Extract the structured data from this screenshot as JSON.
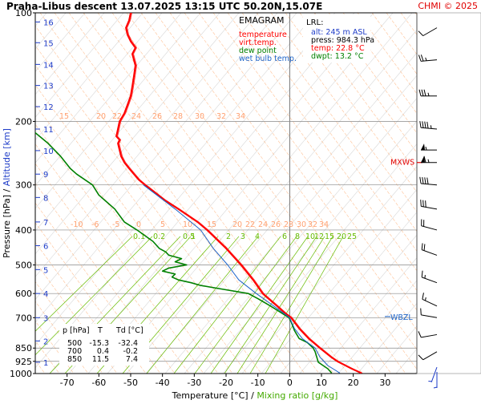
{
  "chart_data": {
    "type": "line",
    "title": "Praha-Libus   descent   13.07.2025 13:15 UTC  50.20N,15.07E",
    "copyright": "CHMI © 2025",
    "xlabel": "Temperature [°C]",
    "xlabel_sep": "/",
    "xlabel2": "Mixing ratio [g/kg]",
    "ylabel": "Pressure [hPa]",
    "ylabel_sep": "/",
    "ylabel2": "Altitude [km]",
    "x_range": [
      -80,
      40
    ],
    "y_range_hPa": [
      1000,
      100
    ],
    "y_scale": "log",
    "x_ticks": [
      -70,
      -60,
      -50,
      -40,
      -30,
      -20,
      -10,
      0,
      10,
      20,
      30
    ],
    "pressure_ticks": [
      100,
      200,
      300,
      400,
      500,
      600,
      700,
      850,
      925,
      1000
    ],
    "altitude_ticks": [
      {
        "km": "16",
        "p": 106
      },
      {
        "km": "15",
        "p": 121
      },
      {
        "km": "14",
        "p": 139
      },
      {
        "km": "13",
        "p": 159
      },
      {
        "km": "12",
        "p": 182
      },
      {
        "km": "11",
        "p": 210
      },
      {
        "km": "10",
        "p": 241
      },
      {
        "km": "9",
        "p": 280
      },
      {
        "km": "8",
        "p": 325
      },
      {
        "km": "7",
        "p": 380
      },
      {
        "km": "6",
        "p": 442
      },
      {
        "km": "5",
        "p": 515
      },
      {
        "km": "4",
        "p": 600
      },
      {
        "km": "3",
        "p": 700
      },
      {
        "km": "2",
        "p": 812
      },
      {
        "km": "1",
        "p": 930
      }
    ],
    "mixing_ratio_labels": [
      "0.1",
      "0.2",
      "0.5",
      "1",
      "2",
      "3",
      "4",
      "6",
      "8",
      "10",
      "12",
      "15",
      "20",
      "25"
    ],
    "adiabat_labels_200": [
      "15",
      "20",
      "22",
      "24",
      "26",
      "28",
      "30",
      "32",
      "34"
    ],
    "adiabat_labels_400": [
      "-10",
      "-6",
      "-5",
      "0",
      "5",
      "10",
      "15",
      "20",
      "22",
      "24",
      "26",
      "28",
      "30",
      "32",
      "34"
    ],
    "legend": {
      "title": "EMAGRAM",
      "items": [
        {
          "label": "temperature",
          "color": "#ff0000"
        },
        {
          "label": "virt.temp.",
          "color": "#ff0000"
        },
        {
          "label": "dew point",
          "color": "#008000"
        },
        {
          "label": "wet bulb temp.",
          "color": "#1e64c8"
        }
      ]
    },
    "lrl": {
      "title": "LRL:",
      "alt": "alt: 245 m ASL",
      "press": "press: 984.3 hPa",
      "temp": "temp: 22.8 °C",
      "dwpt": "dwpt: 13.2 °C"
    },
    "markers": {
      "mxws": "MXWS",
      "wbzl": "WBZL",
      "wbzl_p": 695,
      "mxws_p": 260
    },
    "table": {
      "headers": [
        "p [hPa]",
        "T",
        "Td [°C]"
      ],
      "rows": [
        [
          "500",
          "-15.3",
          "-32.4"
        ],
        [
          "700",
          "0.4",
          "-0.2"
        ],
        [
          "850",
          "11.5",
          "7.4"
        ]
      ]
    },
    "series": [
      {
        "name": "temperature",
        "color": "#ff0000",
        "p": [
          997,
          970,
          940,
          925,
          900,
          850,
          800,
          750,
          700,
          680,
          650,
          600,
          550,
          500,
          450,
          400,
          380,
          350,
          330,
          300,
          290,
          280,
          270,
          260,
          250,
          240,
          230,
          225,
          220,
          210,
          200,
          190,
          180,
          170,
          160,
          150,
          140,
          130,
          125,
          120,
          115,
          110,
          105,
          100
        ],
        "t": [
          22.5,
          19.5,
          16.5,
          15.0,
          13.0,
          9.5,
          6.0,
          3.0,
          0.4,
          -1.5,
          -4.0,
          -8.5,
          -11.5,
          -15.3,
          -20.0,
          -26.0,
          -29.0,
          -35.0,
          -39.5,
          -45.5,
          -47.5,
          -49.0,
          -50.5,
          -52.0,
          -53.0,
          -53.5,
          -54.0,
          -53.5,
          -54.5,
          -54.0,
          -53.5,
          -52.0,
          -51.0,
          -50.0,
          -49.5,
          -49.0,
          -48.5,
          -49.5,
          -48.5,
          -50.0,
          -51.0,
          -51.5,
          -50.5,
          -50.0
        ]
      },
      {
        "name": "dew point",
        "color": "#008000",
        "p": [
          997,
          970,
          950,
          930,
          900,
          870,
          850,
          820,
          800,
          760,
          720,
          700,
          680,
          650,
          620,
          600,
          580,
          570,
          560,
          550,
          540,
          530,
          520,
          510,
          500,
          490,
          480,
          470,
          460,
          450,
          430,
          400,
          380,
          350,
          320,
          300,
          280,
          270,
          250,
          230,
          215,
          200,
          190
        ],
        "t": [
          13.2,
          12.0,
          10.5,
          9.0,
          8.5,
          8.0,
          7.4,
          5.5,
          3.0,
          1.5,
          0.5,
          -0.2,
          -2.5,
          -6.0,
          -10.0,
          -13.0,
          -23.0,
          -28.0,
          -31.0,
          -35.0,
          -37.0,
          -36.0,
          -40.0,
          -38.0,
          -32.4,
          -36.0,
          -34.0,
          -38.0,
          -39.0,
          -41.0,
          -43.0,
          -48.0,
          -52.0,
          -55.0,
          -60.0,
          -62.0,
          -67.0,
          -69.0,
          -72.0,
          -76.0,
          -80.0,
          -83.0,
          -85.0
        ]
      },
      {
        "name": "wet bulb temp.",
        "color": "#1e64c8",
        "p": [
          997,
          950,
          900,
          850,
          800,
          750,
          700,
          650,
          600,
          550,
          500,
          450,
          400,
          350,
          300
        ],
        "t": [
          15.8,
          12.0,
          9.5,
          8.0,
          4.0,
          1.5,
          0.0,
          -5.0,
          -10.5,
          -16.0,
          -19.5,
          -24.0,
          -28.0,
          -36.0,
          -46.0
        ]
      }
    ],
    "winds": [
      {
        "p": 110,
        "dir": 240,
        "spd": 10
      },
      {
        "p": 135,
        "dir": 265,
        "spd": 25
      },
      {
        "p": 170,
        "dir": 270,
        "spd": 35
      },
      {
        "p": 210,
        "dir": 275,
        "spd": 45
      },
      {
        "p": 240,
        "dir": 270,
        "spd": 55
      },
      {
        "p": 260,
        "dir": 270,
        "spd": 65
      },
      {
        "p": 300,
        "dir": 275,
        "spd": 40
      },
      {
        "p": 350,
        "dir": 280,
        "spd": 30
      },
      {
        "p": 400,
        "dir": 285,
        "spd": 20
      },
      {
        "p": 470,
        "dir": 290,
        "spd": 20
      },
      {
        "p": 560,
        "dir": 290,
        "spd": 15
      },
      {
        "p": 650,
        "dir": 295,
        "spd": 15
      },
      {
        "p": 700,
        "dir": 280,
        "spd": 10
      },
      {
        "p": 780,
        "dir": 260,
        "spd": 10
      },
      {
        "p": 870,
        "dir": 240,
        "spd": 10
      },
      {
        "p": 960,
        "dir": 200,
        "spd": 5
      },
      {
        "p": 990,
        "dir": 180,
        "spd": 5
      }
    ]
  }
}
